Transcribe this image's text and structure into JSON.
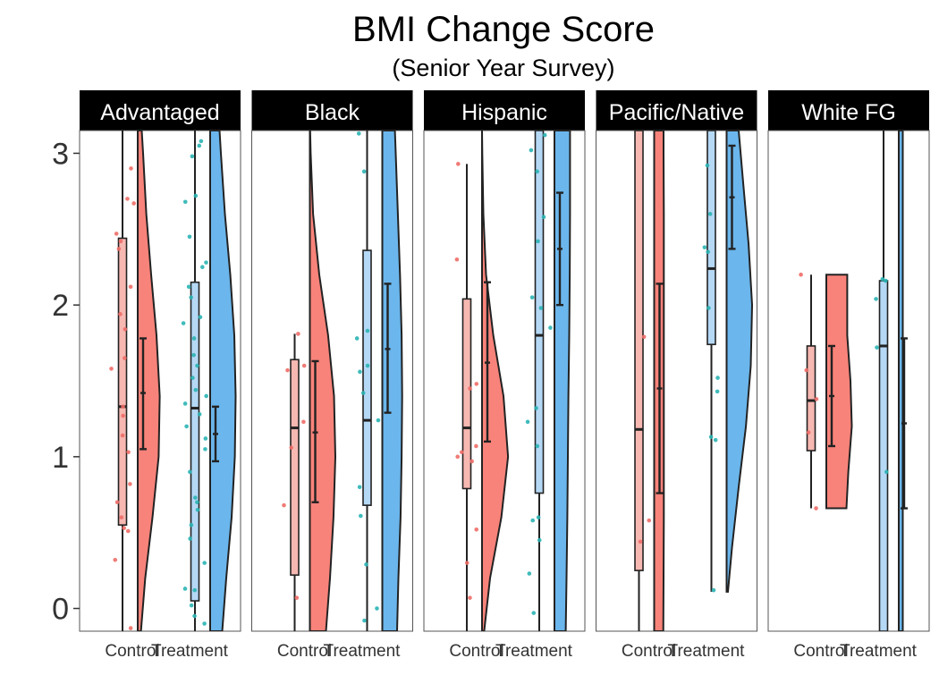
{
  "chart_data": {
    "type": "raincloud",
    "title": "BMI Change Score",
    "subtitle": "(Senior Year Survey)",
    "xlabel": "",
    "ylabel": "",
    "ylim": [
      -0.15,
      3.15
    ],
    "yticks": [
      0,
      1,
      2,
      3
    ],
    "ytick_labels": [
      "0",
      "1",
      "2",
      "3"
    ],
    "categories": [
      "Control",
      "Treatment"
    ],
    "colors": {
      "control_cloud": "#f8837a",
      "control_box": "#f7b8b2",
      "control_point": "#ee6d67",
      "treatment_cloud": "#6bb6ec",
      "treatment_box": "#b5d8f5",
      "treatment_point": "#2bb4b4",
      "strip_bg": "#000000",
      "strip_text": "#ffffff",
      "outline": "#222222"
    },
    "panels": [
      {
        "name": "Advantaged",
        "control": {
          "box": {
            "q1": 0.55,
            "median": 1.33,
            "q3": 2.44,
            "low": -0.2,
            "high": 3.2
          },
          "ci": {
            "mean": 1.42,
            "low": 1.05,
            "high": 1.78
          },
          "density": {
            "y": [
              -0.15,
              0.2,
              0.6,
              1.0,
              1.4,
              1.8,
              2.2,
              2.6,
              3.0,
              3.15
            ],
            "d": [
              0.12,
              0.28,
              0.55,
              0.78,
              0.82,
              0.7,
              0.5,
              0.32,
              0.2,
              0.15
            ]
          },
          "points": [
            0.32,
            0.51,
            0.53,
            0.6,
            0.7,
            0.82,
            1.03,
            1.14,
            1.27,
            1.33,
            1.58,
            1.65,
            1.84,
            1.94,
            2.12,
            2.37,
            2.42,
            2.47,
            2.67,
            2.7,
            2.9,
            -0.13
          ]
        },
        "treatment": {
          "box": {
            "q1": 0.05,
            "median": 1.32,
            "q3": 2.15,
            "low": -0.2,
            "high": 3.2
          },
          "ci": {
            "mean": 1.15,
            "low": 0.97,
            "high": 1.33
          },
          "density": {
            "y": [
              -0.15,
              0.2,
              0.6,
              1.0,
              1.4,
              1.8,
              2.2,
              2.6,
              3.0,
              3.15
            ],
            "d": [
              0.45,
              0.6,
              0.8,
              0.92,
              0.95,
              0.9,
              0.75,
              0.55,
              0.4,
              0.35
            ]
          },
          "points": [
            -0.1,
            -0.05,
            0.02,
            0.12,
            0.13,
            0.3,
            0.46,
            0.55,
            0.65,
            0.7,
            0.73,
            0.9,
            1.05,
            1.12,
            1.2,
            1.28,
            1.35,
            1.4,
            1.44,
            1.52,
            1.6,
            1.67,
            1.78,
            1.88,
            1.92,
            2.05,
            2.12,
            2.25,
            2.28,
            2.45,
            2.68,
            2.72,
            2.98,
            3.05,
            3.08
          ]
        }
      },
      {
        "name": "Black",
        "control": {
          "box": {
            "q1": 0.22,
            "median": 1.19,
            "q3": 1.64,
            "low": -0.2,
            "high": 1.81
          },
          "ci": {
            "mean": 1.16,
            "low": 0.7,
            "high": 1.63
          },
          "density": {
            "y": [
              -0.15,
              0.2,
              0.6,
              1.0,
              1.4,
              1.8,
              2.2,
              2.6,
              3.0,
              3.15
            ],
            "d": [
              0.6,
              0.75,
              0.88,
              0.95,
              0.9,
              0.68,
              0.35,
              0.12,
              0.03,
              0.01
            ]
          },
          "points": [
            0.07,
            0.68,
            1.06,
            1.23,
            1.57,
            1.6,
            1.81
          ]
        },
        "treatment": {
          "box": {
            "q1": 0.68,
            "median": 1.24,
            "q3": 2.36,
            "low": -0.2,
            "high": 3.2
          },
          "ci": {
            "mean": 1.71,
            "low": 1.29,
            "high": 2.14
          },
          "density": {
            "y": [
              -0.15,
              0.2,
              0.6,
              1.0,
              1.4,
              1.8,
              2.2,
              2.6,
              3.0,
              3.15
            ],
            "d": [
              0.55,
              0.6,
              0.68,
              0.72,
              0.74,
              0.72,
              0.66,
              0.58,
              0.5,
              0.47
            ]
          },
          "points": [
            -0.08,
            0.0,
            0.29,
            0.61,
            0.8,
            1.24,
            1.42,
            1.56,
            1.6,
            1.78,
            1.83,
            2.88,
            3.13
          ]
        }
      },
      {
        "name": "Hispanic",
        "control": {
          "box": {
            "q1": 0.79,
            "median": 1.19,
            "q3": 2.04,
            "low": -0.2,
            "high": 2.93
          },
          "ci": {
            "mean": 1.62,
            "low": 1.1,
            "high": 2.15
          },
          "density": {
            "y": [
              -0.15,
              0.2,
              0.6,
              1.0,
              1.4,
              1.8,
              2.2,
              2.6,
              3.0,
              3.15
            ],
            "d": [
              0.08,
              0.3,
              0.72,
              0.97,
              0.8,
              0.42,
              0.15,
              0.05,
              0.01,
              0.0
            ]
          },
          "points": [
            0.07,
            0.3,
            0.52,
            0.97,
            1.0,
            1.03,
            1.07,
            1.45,
            1.48,
            2.3,
            2.93
          ]
        },
        "treatment": {
          "box": {
            "q1": 0.76,
            "median": 1.8,
            "q3": 3.2,
            "low": -0.2,
            "high": 3.2
          },
          "ci": {
            "mean": 2.37,
            "low": 2.0,
            "high": 2.74
          },
          "density": {
            "y": [
              -0.15,
              0.2,
              0.6,
              1.0,
              1.4,
              1.8,
              2.2,
              2.6,
              3.0,
              3.15
            ],
            "d": [
              0.42,
              0.45,
              0.48,
              0.5,
              0.52,
              0.55,
              0.57,
              0.58,
              0.58,
              0.58
            ]
          },
          "points": [
            -0.03,
            0.23,
            0.45,
            0.58,
            0.6,
            1.07,
            1.23,
            1.32,
            1.85,
            1.98,
            2.05,
            2.42,
            2.58,
            2.88,
            3.02,
            3.12
          ]
        }
      },
      {
        "name": "Pacific/Native",
        "control": {
          "box": {
            "q1": 0.25,
            "median": 1.18,
            "q3": 3.2,
            "low": -0.2,
            "high": 3.2
          },
          "ci": {
            "mean": 1.45,
            "low": 0.76,
            "high": 2.14
          },
          "density": {
            "y": [
              -0.15,
              0.2,
              0.6,
              1.0,
              1.4,
              1.8,
              2.2,
              2.6,
              3.0,
              3.15
            ],
            "d": [
              0.34,
              0.35,
              0.36,
              0.36,
              0.36,
              0.36,
              0.36,
              0.36,
              0.35,
              0.35
            ]
          },
          "points": [
            0.44,
            0.58,
            1.79
          ]
        },
        "treatment": {
          "box": {
            "q1": 1.74,
            "median": 2.24,
            "q3": 3.2,
            "low": 0.11,
            "high": 3.2
          },
          "ci": {
            "mean": 2.71,
            "low": 2.37,
            "high": 3.05
          },
          "density": {
            "y": [
              0.11,
              0.4,
              0.8,
              1.2,
              1.6,
              2.0,
              2.4,
              2.8,
              3.15
            ],
            "d": [
              0.05,
              0.2,
              0.45,
              0.72,
              0.9,
              0.95,
              0.82,
              0.62,
              0.45
            ]
          },
          "points": [
            0.12,
            1.11,
            1.13,
            1.43,
            1.52,
            1.98,
            2.35,
            2.38,
            2.6,
            2.92
          ]
        }
      },
      {
        "name": "White FG",
        "control": {
          "box": {
            "q1": 1.04,
            "median": 1.37,
            "q3": 1.73,
            "low": 0.66,
            "high": 2.2
          },
          "ci": {
            "mean": 1.4,
            "low": 1.07,
            "high": 1.73
          },
          "density": {
            "y": [
              0.66,
              0.9,
              1.2,
              1.5,
              1.8,
              2.0,
              2.2
            ],
            "d": [
              0.75,
              0.82,
              0.95,
              0.9,
              0.78,
              0.78,
              0.78
            ]
          },
          "points": [
            0.66,
            1.16,
            1.38,
            1.57,
            2.2
          ]
        },
        "treatment": {
          "box": {
            "q1": -0.2,
            "median": 1.73,
            "q3": 2.16,
            "low": -0.2,
            "high": 3.2
          },
          "ci": {
            "mean": 1.22,
            "low": 0.66,
            "high": 1.78
          },
          "density": {
            "y": [
              -0.15,
              0.6,
              1.2,
              1.8,
              2.4,
              3.15
            ],
            "d": [
              0.15,
              0.15,
              0.15,
              0.15,
              0.15,
              0.15
            ]
          },
          "points": [
            0.9,
            1.72,
            2.04,
            2.16,
            2.17
          ]
        }
      }
    ]
  }
}
